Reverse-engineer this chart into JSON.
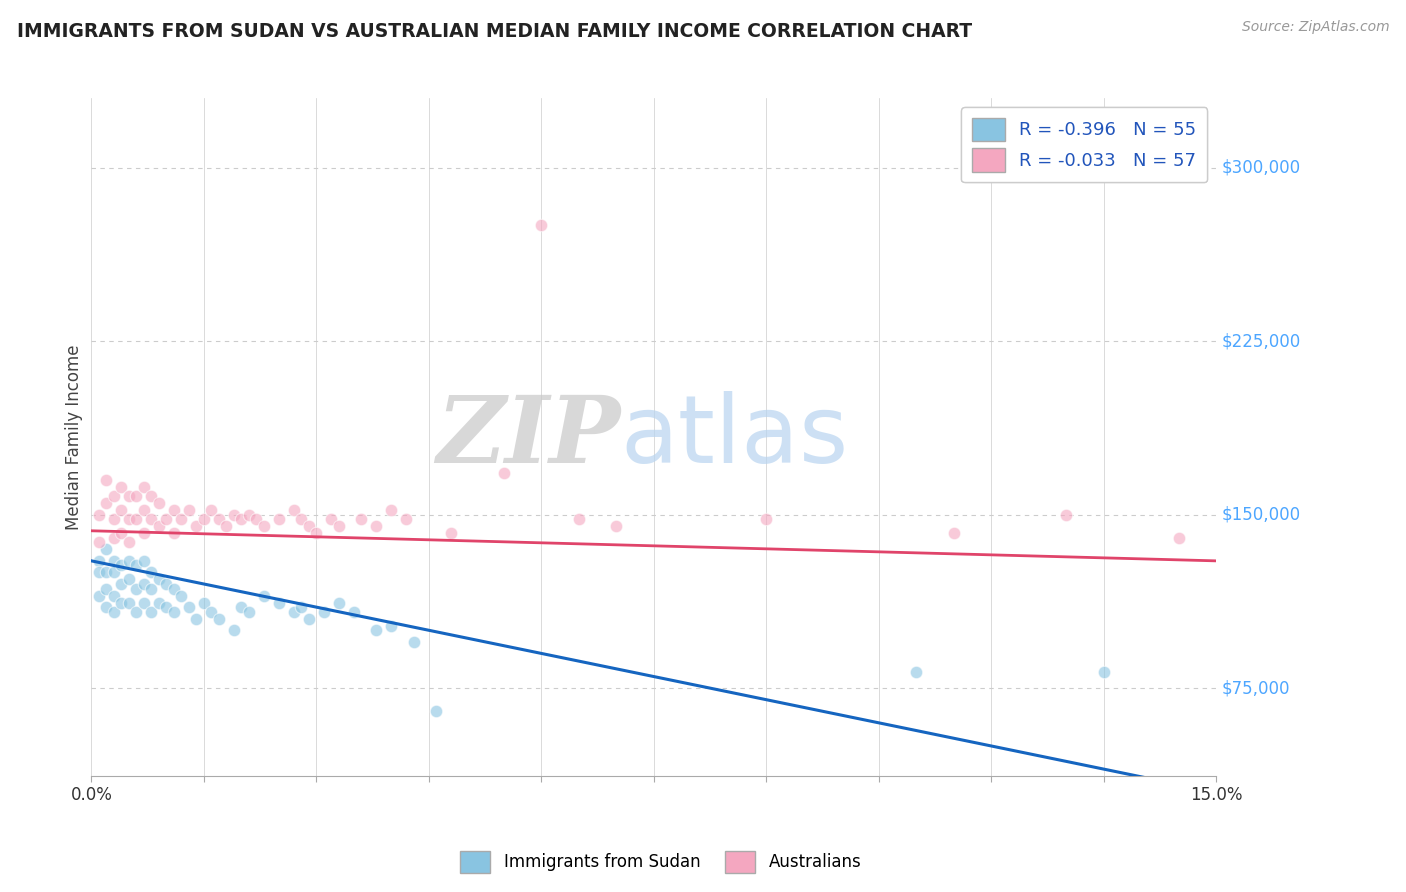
{
  "title": "IMMIGRANTS FROM SUDAN VS AUSTRALIAN MEDIAN FAMILY INCOME CORRELATION CHART",
  "source_text": "Source: ZipAtlas.com",
  "ylabel": "Median Family Income",
  "xlim": [
    0.0,
    0.15
  ],
  "ylim": [
    37000,
    330000
  ],
  "xtick_positions": [
    0.0,
    0.015,
    0.03,
    0.045,
    0.06,
    0.075,
    0.09,
    0.105,
    0.12,
    0.135,
    0.15
  ],
  "xtick_labels_show": [
    "0.0%",
    "",
    "",
    "",
    "",
    "",
    "",
    "",
    "",
    "",
    "15.0%"
  ],
  "ytick_values": [
    75000,
    150000,
    225000,
    300000
  ],
  "ytick_labels": [
    "$75,000",
    "$150,000",
    "$225,000",
    "$300,000"
  ],
  "background_color": "#ffffff",
  "plot_bg_color": "#ffffff",
  "grid_color": "#cccccc",
  "title_color": "#222222",
  "ytick_color": "#4da6ff",
  "xtick_color": "#333333",
  "blue_color": "#89c4e1",
  "pink_color": "#f4a7c0",
  "blue_line_color": "#1565c0",
  "pink_line_color": "#e0446a",
  "legend_r1": "R = -0.396   N = 55",
  "legend_r2": "R = -0.033   N = 57",
  "legend_label1": "Immigrants from Sudan",
  "legend_label2": "Australians",
  "watermark_zip": "ZIP",
  "watermark_atlas": "atlas",
  "blue_x": [
    0.001,
    0.001,
    0.001,
    0.002,
    0.002,
    0.002,
    0.002,
    0.003,
    0.003,
    0.003,
    0.003,
    0.004,
    0.004,
    0.004,
    0.005,
    0.005,
    0.005,
    0.006,
    0.006,
    0.006,
    0.007,
    0.007,
    0.007,
    0.008,
    0.008,
    0.008,
    0.009,
    0.009,
    0.01,
    0.01,
    0.011,
    0.011,
    0.012,
    0.013,
    0.014,
    0.015,
    0.016,
    0.017,
    0.019,
    0.02,
    0.021,
    0.023,
    0.025,
    0.027,
    0.028,
    0.029,
    0.031,
    0.033,
    0.035,
    0.038,
    0.04,
    0.043,
    0.046,
    0.11,
    0.135
  ],
  "blue_y": [
    130000,
    125000,
    115000,
    135000,
    125000,
    118000,
    110000,
    130000,
    125000,
    115000,
    108000,
    128000,
    120000,
    112000,
    130000,
    122000,
    112000,
    128000,
    118000,
    108000,
    130000,
    120000,
    112000,
    125000,
    118000,
    108000,
    122000,
    112000,
    120000,
    110000,
    118000,
    108000,
    115000,
    110000,
    105000,
    112000,
    108000,
    105000,
    100000,
    110000,
    108000,
    115000,
    112000,
    108000,
    110000,
    105000,
    108000,
    112000,
    108000,
    100000,
    102000,
    95000,
    65000,
    82000,
    82000
  ],
  "pink_x": [
    0.001,
    0.001,
    0.002,
    0.002,
    0.003,
    0.003,
    0.003,
    0.004,
    0.004,
    0.004,
    0.005,
    0.005,
    0.005,
    0.006,
    0.006,
    0.007,
    0.007,
    0.007,
    0.008,
    0.008,
    0.009,
    0.009,
    0.01,
    0.011,
    0.011,
    0.012,
    0.013,
    0.014,
    0.015,
    0.016,
    0.017,
    0.018,
    0.019,
    0.02,
    0.021,
    0.022,
    0.023,
    0.025,
    0.027,
    0.028,
    0.029,
    0.03,
    0.032,
    0.033,
    0.036,
    0.038,
    0.04,
    0.042,
    0.048,
    0.055,
    0.06,
    0.065,
    0.07,
    0.09,
    0.115,
    0.13,
    0.145
  ],
  "pink_y": [
    150000,
    138000,
    165000,
    155000,
    158000,
    148000,
    140000,
    162000,
    152000,
    142000,
    158000,
    148000,
    138000,
    158000,
    148000,
    162000,
    152000,
    142000,
    158000,
    148000,
    155000,
    145000,
    148000,
    152000,
    142000,
    148000,
    152000,
    145000,
    148000,
    152000,
    148000,
    145000,
    150000,
    148000,
    150000,
    148000,
    145000,
    148000,
    152000,
    148000,
    145000,
    142000,
    148000,
    145000,
    148000,
    145000,
    152000,
    148000,
    142000,
    168000,
    275000,
    148000,
    145000,
    148000,
    142000,
    150000,
    140000
  ]
}
